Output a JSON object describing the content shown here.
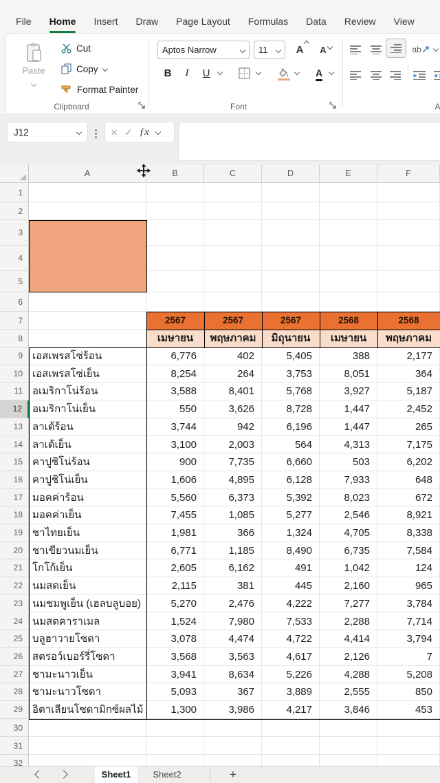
{
  "ribbon": {
    "tabs": [
      {
        "label": "File"
      },
      {
        "label": "Home"
      },
      {
        "label": "Insert"
      },
      {
        "label": "Draw"
      },
      {
        "label": "Page Layout"
      },
      {
        "label": "Formulas"
      },
      {
        "label": "Data"
      },
      {
        "label": "Review"
      },
      {
        "label": "View"
      }
    ],
    "active_tab": "Home",
    "groups": {
      "clipboard": {
        "label": "Clipboard",
        "paste": "Paste",
        "cut": "Cut",
        "copy": "Copy",
        "format_painter": "Format Painter"
      },
      "font": {
        "label": "Font",
        "font_name": "Aptos Narrow",
        "font_size": "11",
        "bold": "B",
        "italic": "I",
        "underline": "U"
      },
      "alignment": {
        "label": "Ali",
        "orientation_glyph": "ab"
      }
    }
  },
  "formula_bar": {
    "name_box_value": "J12",
    "formula_value": "",
    "cancel_glyph": "×",
    "enter_glyph": "✓",
    "fx_glyph": "ƒx"
  },
  "grid": {
    "columns": [
      "A",
      "B",
      "C",
      "D",
      "E",
      "F"
    ],
    "row_count": 32,
    "active_row": 12
  },
  "table": {
    "years": [
      "2567",
      "2567",
      "2567",
      "2568",
      "2568"
    ],
    "months": [
      "เมษายน",
      "พฤษภาคม",
      "มิถุนายน",
      "เมษายน",
      "พฤษภาคม"
    ],
    "first_data_row": 9,
    "rows": [
      {
        "label": "เอสเพรสโซ่ร้อน",
        "values": [
          "6,776",
          "402",
          "5,405",
          "388",
          "2,177"
        ]
      },
      {
        "label": "เอสเพรสโซ่เย็น",
        "values": [
          "8,254",
          "264",
          "3,753",
          "8,051",
          "364"
        ]
      },
      {
        "label": "อเมริกาโน่ร้อน",
        "values": [
          "3,588",
          "8,401",
          "5,768",
          "3,927",
          "5,187"
        ]
      },
      {
        "label": "อเมริกาโน่เย็น",
        "values": [
          "550",
          "3,626",
          "8,728",
          "1,447",
          "2,452"
        ]
      },
      {
        "label": "ลาเต้ร้อน",
        "values": [
          "3,744",
          "942",
          "6,196",
          "1,447",
          "265"
        ]
      },
      {
        "label": "ลาเต้เย็น",
        "values": [
          "3,100",
          "2,003",
          "564",
          "4,313",
          "7,175"
        ]
      },
      {
        "label": "คาปูชิโน่ร้อน",
        "values": [
          "900",
          "7,735",
          "6,660",
          "503",
          "6,202"
        ]
      },
      {
        "label": "คาปูชิโน่เย็น",
        "values": [
          "1,606",
          "4,895",
          "6,128",
          "7,933",
          "648"
        ]
      },
      {
        "label": "มอคค่าร้อน",
        "values": [
          "5,560",
          "6,373",
          "5,392",
          "8,023",
          "672"
        ]
      },
      {
        "label": "มอคค่าเย็น",
        "values": [
          "7,455",
          "1,085",
          "5,277",
          "2,546",
          "8,921"
        ]
      },
      {
        "label": "ชาไทยเย็น",
        "values": [
          "1,981",
          "366",
          "1,324",
          "4,705",
          "8,338"
        ]
      },
      {
        "label": "ชาเขียวนมเย็น",
        "values": [
          "6,771",
          "1,185",
          "8,490",
          "6,735",
          "7,584"
        ]
      },
      {
        "label": "โกโก้เย็น",
        "values": [
          "2,605",
          "6,162",
          "491",
          "1,042",
          "124"
        ]
      },
      {
        "label": "นมสดเย็น",
        "values": [
          "2,115",
          "381",
          "445",
          "2,160",
          "965"
        ]
      },
      {
        "label": "นมชมพูเย็น (เฮลบลูบอย)",
        "values": [
          "5,270",
          "2,476",
          "4,222",
          "7,277",
          "3,784"
        ]
      },
      {
        "label": "นมสดคาราเมล",
        "values": [
          "1,524",
          "7,980",
          "7,533",
          "2,288",
          "7,714"
        ]
      },
      {
        "label": "บลูฮาวายโซดา",
        "values": [
          "3,078",
          "4,474",
          "4,722",
          "4,414",
          "3,794"
        ]
      },
      {
        "label": "สตรอว์เบอร์รี่โซดา",
        "values": [
          "3,568",
          "3,563",
          "4,617",
          "2,126",
          "7"
        ]
      },
      {
        "label": "ชามะนาวเย็น",
        "values": [
          "3,941",
          "8,634",
          "5,226",
          "4,288",
          "5,208"
        ]
      },
      {
        "label": "ชามะนาวโซดา",
        "values": [
          "5,093",
          "367",
          "3,889",
          "2,555",
          "850"
        ]
      },
      {
        "label": "อิตาเลียนโซดามิกซ์ผลไม้",
        "values": [
          "1,300",
          "3,986",
          "4,217",
          "3,846",
          "453"
        ]
      }
    ]
  },
  "sheet_bar": {
    "sheets": [
      "Sheet1",
      "Sheet2"
    ],
    "active_sheet": "Sheet1",
    "add_glyph": "+"
  },
  "icons": {
    "paste": "clipboard-icon",
    "cut": "scissors-icon",
    "copy": "copy-pages-icon",
    "format_painter": "brush-icon",
    "dialog_launcher": "corner-arrow-icon",
    "fill_color": "paint-bucket-icon",
    "font_color": "letter-A-color-icon",
    "borders": "border-grid-icon",
    "move_cursor": "four-arrow-move-icon",
    "select_all": "corner-triangle-icon"
  },
  "colors": {
    "header_orange": "#E97132",
    "block_orange": "#F0A47E",
    "month_peach": "#FADCCB",
    "excel_green": "#107C41"
  }
}
